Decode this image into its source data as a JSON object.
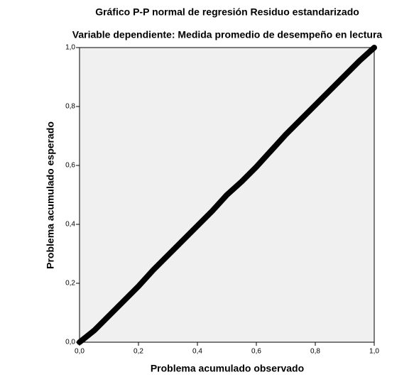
{
  "chart_data": {
    "type": "line",
    "title": "Gráfico P-P normal de regresión Residuo estandarizado",
    "subtitle": "Variable dependiente: Medida promedio de desempeño en lectura",
    "x_label": "Problema acumulado observado",
    "y_label": "Problema acumulado esperado",
    "x": [
      0,
      0.05,
      0.1,
      0.15,
      0.2,
      0.25,
      0.3,
      0.35,
      0.4,
      0.45,
      0.5,
      0.55,
      0.6,
      0.65,
      0.7,
      0.75,
      0.8,
      0.85,
      0.9,
      0.95,
      1
    ],
    "series": [
      {
        "color": "#000000",
        "values": [
          0,
          0.04,
          0.09,
          0.14,
          0.19,
          0.245,
          0.295,
          0.345,
          0.395,
          0.445,
          0.5,
          0.545,
          0.595,
          0.65,
          0.705,
          0.755,
          0.805,
          0.855,
          0.905,
          0.955,
          1
        ]
      }
    ],
    "xlim": [
      0,
      1
    ],
    "ylim": [
      0,
      1
    ],
    "xticks": [
      {
        "value": 0,
        "label": "0,0"
      },
      {
        "value": 0.2,
        "label": "0,2"
      },
      {
        "value": 0.4,
        "label": "0,4"
      },
      {
        "value": 0.6,
        "label": "0,6"
      },
      {
        "value": 0.8,
        "label": "0,8"
      },
      {
        "value": 1,
        "label": "1,0"
      }
    ],
    "yticks": [
      {
        "value": 0,
        "label": "0,0"
      },
      {
        "value": 0.2,
        "label": "0,2"
      },
      {
        "value": 0.4,
        "label": "0,4"
      },
      {
        "value": 0.6,
        "label": "0,6"
      },
      {
        "value": 0.8,
        "label": "0,8"
      },
      {
        "value": 1,
        "label": "1,0"
      }
    ],
    "background": "#f0f0f0"
  }
}
